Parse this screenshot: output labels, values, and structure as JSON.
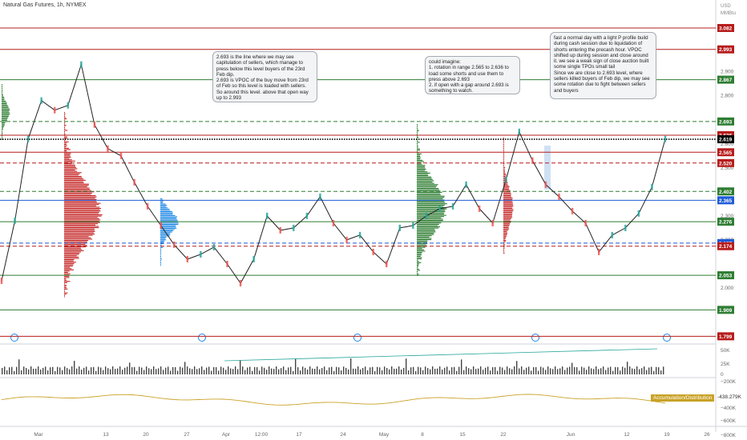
{
  "chart_data": {
    "type": "line",
    "title": "Natural Gas Futures, 1h, NYMEX",
    "y_unit_labels": [
      "USD",
      "MMBtu"
    ],
    "ylim": [
      1.95,
      3.1
    ],
    "y_ticks": [
      "2.900",
      "2.800",
      "2.600",
      "2.500",
      "2.300",
      "2.200",
      "2.000"
    ],
    "x_ticks": [
      "Mar",
      "13",
      "20",
      "27",
      "Apr",
      "12:00",
      "17",
      "24",
      "May",
      "8",
      "15",
      "22",
      "Jun",
      "12",
      "19",
      "26"
    ],
    "price_series": {
      "name": "Natural Gas Futures, 1h, NYMEX",
      "x": [
        0,
        0.02,
        0.04,
        0.06,
        0.08,
        0.1,
        0.12,
        0.14,
        0.16,
        0.18,
        0.2,
        0.22,
        0.24,
        0.26,
        0.28,
        0.3,
        0.32,
        0.34,
        0.36,
        0.38,
        0.4,
        0.42,
        0.44,
        0.46,
        0.48,
        0.5,
        0.52,
        0.54,
        0.56,
        0.58,
        0.6,
        0.62,
        0.64,
        0.66,
        0.68,
        0.7,
        0.72,
        0.74,
        0.76,
        0.78,
        0.8,
        0.82,
        0.84,
        0.86,
        0.88,
        0.9,
        0.92,
        0.94,
        0.96,
        0.98,
        1.0
      ],
      "values": [
        2.03,
        2.28,
        2.62,
        2.78,
        2.74,
        2.76,
        2.93,
        2.68,
        2.58,
        2.55,
        2.44,
        2.34,
        2.26,
        2.18,
        2.12,
        2.14,
        2.17,
        2.1,
        2.02,
        2.12,
        2.3,
        2.24,
        2.25,
        2.3,
        2.38,
        2.27,
        2.2,
        2.22,
        2.15,
        2.1,
        2.25,
        2.26,
        2.3,
        2.33,
        2.34,
        2.43,
        2.33,
        2.27,
        2.45,
        2.65,
        2.53,
        2.43,
        2.38,
        2.32,
        2.27,
        2.15,
        2.22,
        2.25,
        2.31,
        2.42,
        2.62
      ]
    },
    "levels": [
      {
        "label": "3.082",
        "value": 3.082,
        "color": "#b71c1c",
        "style": "solid"
      },
      {
        "label": "2.993",
        "value": 2.993,
        "color": "#b71c1c",
        "style": "solid"
      },
      {
        "label": "2.867",
        "value": 2.867,
        "color": "#2e7d32",
        "style": "solid"
      },
      {
        "label": "2.693",
        "value": 2.693,
        "color": "#2e7d32",
        "style": "dashed"
      },
      {
        "label": "2.636",
        "value": 2.636,
        "color": "#b71c1c",
        "style": "solid"
      },
      {
        "label": "2.619",
        "value": 2.619,
        "color": "#000000",
        "style": "dotted"
      },
      {
        "label": "2.565",
        "value": 2.565,
        "color": "#b71c1c",
        "style": "solid"
      },
      {
        "label": "2.520",
        "value": 2.52,
        "color": "#b71c1c",
        "style": "dashed"
      },
      {
        "label": "2.402",
        "value": 2.402,
        "color": "#2e7d32",
        "style": "dashed"
      },
      {
        "label": "2.365",
        "value": 2.365,
        "color": "#1e5bd6",
        "style": "solid"
      },
      {
        "label": "2.276",
        "value": 2.276,
        "color": "#2e7d32",
        "style": "solid"
      },
      {
        "label": "2.187",
        "value": 2.187,
        "color": "#1e5bd6",
        "style": "dashed"
      },
      {
        "label": "2.174",
        "value": 2.174,
        "color": "#b71c1c",
        "style": "dashed"
      },
      {
        "label": "2.053",
        "value": 2.053,
        "color": "#2e7d32",
        "style": "solid"
      },
      {
        "label": "1.909",
        "value": 1.909,
        "color": "#2e7d32",
        "style": "solid"
      },
      {
        "label": "1.799",
        "value": 1.799,
        "color": "#b71c1c",
        "style": "solid"
      }
    ],
    "annotations": [
      "2.693 is the line where we may see capitulation of sellers, which manage to press below this level buyers of the 23rd Feb dip.\n2.693 is VPOC of the buy move from 23rd of Feb so this level is loaded with sellers. So around this level. above that open way up to 2.993",
      "could imagine:\n1. rotation in range 2.565 to 2.636 to load some shorts and use them to press above 2.693\n2. if open with a gap around 2.693 is something to watch.",
      "fast a normal day with a light P profile build during cash session due to liquidation of shorts entering the precash hour. VPOC shifted up during session and close around it. we see a weak sign of close auction built some single TPOs small tail\nSince we are close to 2.693 level, where sellers killed buyers of Feb dip, we may see some rotation due to fight between sellers and buyers"
    ],
    "volume_ticks": [
      "50K",
      "25K",
      "0"
    ],
    "indicator": {
      "name": "Accumulation/Distribution",
      "value": "-438.279K",
      "ticks": [
        "−200K",
        "−400K",
        "−600K",
        "−800K"
      ]
    },
    "colors": {
      "up": "#26a69a",
      "down": "#ef5350",
      "bar": "#333333",
      "accum_line": "#c9a227",
      "profile_red": "#c62828",
      "profile_green": "#2e7d32",
      "profile_blue": "#1e88e5"
    }
  }
}
